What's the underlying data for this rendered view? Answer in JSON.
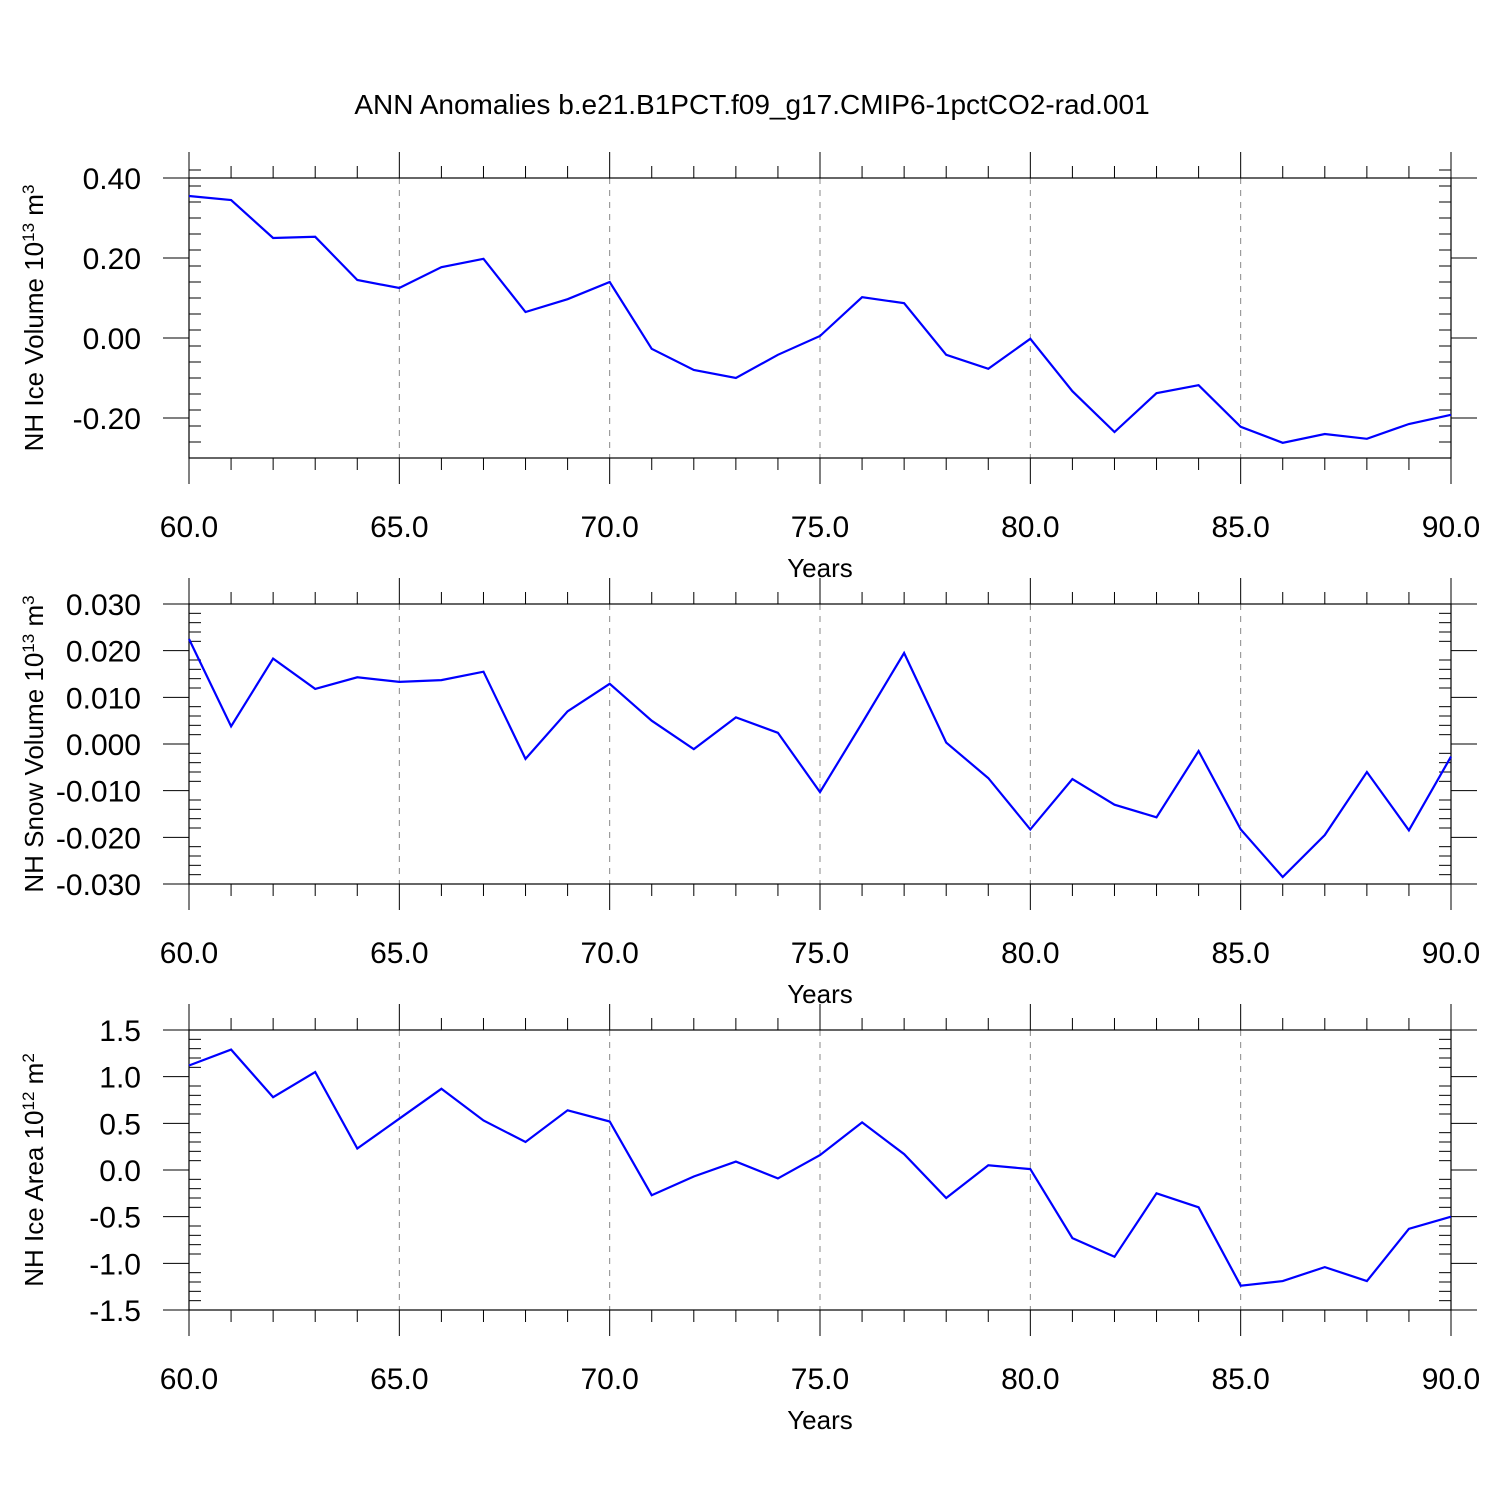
{
  "title": "ANN Anomalies b.e21.B1PCT.f09_g17.CMIP6-1pctCO2-rad.001",
  "chart_data": [
    {
      "type": "line",
      "xlabel": "Years",
      "ylabel": {
        "text": "NH Ice Volume 10",
        "sup": "13",
        "unit": " m",
        "unit_sup": "3"
      },
      "xlim": [
        60,
        90
      ],
      "ylim": [
        -0.3,
        0.4
      ],
      "xticks": [
        "60.0",
        "65.0",
        "70.0",
        "75.0",
        "80.0",
        "85.0",
        "90.0"
      ],
      "yticks": [
        {
          "v": 0.4,
          "label": "0.40"
        },
        {
          "v": 0.2,
          "label": "0.20"
        },
        {
          "v": 0.0,
          "label": "0.00"
        },
        {
          "v": -0.2,
          "label": "-0.20"
        }
      ],
      "grid": "x dashed at labeled ticks",
      "color": "#0000ff",
      "x": [
        60,
        61,
        62,
        63,
        64,
        65,
        66,
        67,
        68,
        69,
        70,
        71,
        72,
        73,
        74,
        75,
        76,
        77,
        78,
        79,
        80,
        81,
        82,
        83,
        84,
        85,
        86,
        87,
        88,
        89,
        90
      ],
      "values": [
        0.355,
        0.345,
        0.25,
        0.253,
        0.145,
        0.125,
        0.177,
        0.198,
        0.065,
        0.097,
        0.14,
        -0.027,
        -0.08,
        -0.1,
        -0.042,
        0.005,
        0.102,
        0.087,
        -0.042,
        -0.077,
        -0.002,
        -0.133,
        -0.235,
        -0.138,
        -0.118,
        -0.222,
        -0.262,
        -0.24,
        -0.252,
        -0.215,
        -0.192
      ]
    },
    {
      "type": "line",
      "xlabel": "Years",
      "ylabel": {
        "text": "NH Snow Volume 10",
        "sup": "13",
        "unit": " m",
        "unit_sup": "3"
      },
      "xlim": [
        60,
        90
      ],
      "ylim": [
        -0.03,
        0.03
      ],
      "xticks": [
        "60.0",
        "65.0",
        "70.0",
        "75.0",
        "80.0",
        "85.0",
        "90.0"
      ],
      "yticks": [
        {
          "v": 0.03,
          "label": "0.030"
        },
        {
          "v": 0.02,
          "label": "0.020"
        },
        {
          "v": 0.01,
          "label": "0.010"
        },
        {
          "v": 0.0,
          "label": "0.000"
        },
        {
          "v": -0.01,
          "label": "-0.010"
        },
        {
          "v": -0.02,
          "label": "-0.020"
        },
        {
          "v": -0.03,
          "label": "-0.030"
        }
      ],
      "grid": "x dashed at labeled ticks",
      "color": "#0000ff",
      "x": [
        60,
        61,
        62,
        63,
        64,
        65,
        66,
        67,
        68,
        69,
        70,
        71,
        72,
        73,
        74,
        75,
        76,
        77,
        78,
        79,
        80,
        81,
        82,
        83,
        84,
        85,
        86,
        87,
        88,
        89,
        90
      ],
      "values": [
        0.0225,
        0.0038,
        0.0183,
        0.0118,
        0.0143,
        0.0133,
        0.0137,
        0.0155,
        -0.0032,
        0.007,
        0.0129,
        0.005,
        -0.0011,
        0.0057,
        0.0024,
        -0.0103,
        0.0045,
        0.0195,
        0.0003,
        -0.0073,
        -0.0183,
        -0.0075,
        -0.013,
        -0.0157,
        -0.0015,
        -0.0183,
        -0.0285,
        -0.0195,
        -0.006,
        -0.0185,
        -0.0027
      ]
    },
    {
      "type": "line",
      "xlabel": "Years",
      "ylabel": {
        "text": "NH Ice Area 10",
        "sup": "12",
        "unit": " m",
        "unit_sup": "2"
      },
      "xlim": [
        60,
        90
      ],
      "ylim": [
        -1.5,
        1.5
      ],
      "xticks": [
        "60.0",
        "65.0",
        "70.0",
        "75.0",
        "80.0",
        "85.0",
        "90.0"
      ],
      "yticks": [
        {
          "v": 1.5,
          "label": "1.5"
        },
        {
          "v": 1.0,
          "label": "1.0"
        },
        {
          "v": 0.5,
          "label": "0.5"
        },
        {
          "v": 0.0,
          "label": "0.0"
        },
        {
          "v": -0.5,
          "label": "-0.5"
        },
        {
          "v": -1.0,
          "label": "-1.0"
        },
        {
          "v": -1.5,
          "label": "-1.5"
        }
      ],
      "grid": "x dashed at labeled ticks",
      "color": "#0000ff",
      "x": [
        60,
        61,
        62,
        63,
        64,
        65,
        66,
        67,
        68,
        69,
        70,
        71,
        72,
        73,
        74,
        75,
        76,
        77,
        78,
        79,
        80,
        81,
        82,
        83,
        84,
        85,
        86,
        87,
        88,
        89,
        90
      ],
      "values": [
        1.12,
        1.29,
        0.78,
        1.05,
        0.23,
        0.55,
        0.87,
        0.53,
        0.3,
        0.64,
        0.52,
        -0.27,
        -0.07,
        0.09,
        -0.09,
        0.16,
        0.51,
        0.17,
        -0.3,
        0.05,
        0.01,
        -0.73,
        -0.93,
        -0.25,
        -0.4,
        -1.24,
        -1.19,
        -1.04,
        -1.19,
        -0.63,
        -0.5
      ]
    }
  ]
}
